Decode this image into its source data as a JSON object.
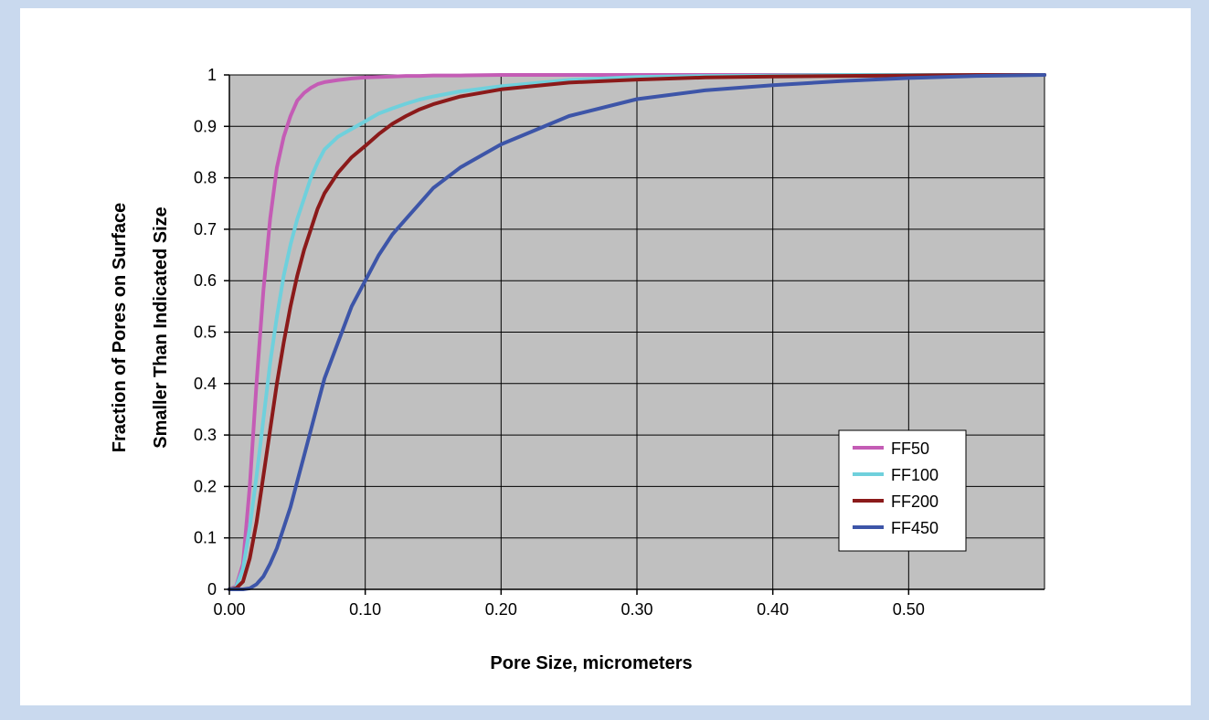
{
  "chart_data": {
    "type": "line",
    "title": "",
    "xlabel": "Pore Size, micrometers",
    "ylabel_line1": "Fraction of Pores on Surface",
    "ylabel_line2": "Smaller Than Indicated Size",
    "xlim": [
      0,
      0.6
    ],
    "ylim": [
      0,
      1
    ],
    "x_ticks": [
      0,
      0.1,
      0.2,
      0.3,
      0.4,
      0.5
    ],
    "x_tick_labels": [
      "0.00",
      "0.10",
      "0.20",
      "0.30",
      "0.40",
      "0.50"
    ],
    "y_ticks": [
      0,
      0.1,
      0.2,
      0.3,
      0.4,
      0.5,
      0.6,
      0.7,
      0.8,
      0.9,
      1
    ],
    "y_tick_labels": [
      "0",
      "0.1",
      "0.2",
      "0.3",
      "0.4",
      "0.5",
      "0.6",
      "0.7",
      "0.8",
      "0.9",
      "1"
    ],
    "grid": true,
    "plot_background": "#c0c0c0",
    "legend_position": "bottom-right",
    "x": [
      0,
      0.005,
      0.01,
      0.015,
      0.02,
      0.025,
      0.03,
      0.035,
      0.04,
      0.045,
      0.05,
      0.055,
      0.06,
      0.065,
      0.07,
      0.08,
      0.09,
      0.1,
      0.11,
      0.12,
      0.13,
      0.14,
      0.15,
      0.17,
      0.2,
      0.25,
      0.3,
      0.35,
      0.4,
      0.45,
      0.5,
      0.55,
      0.6
    ],
    "series": [
      {
        "name": "FF50",
        "color": "#c45cb5",
        "values": [
          0,
          0.006,
          0.05,
          0.2,
          0.4,
          0.58,
          0.72,
          0.82,
          0.88,
          0.92,
          0.95,
          0.965,
          0.975,
          0.982,
          0.986,
          0.99,
          0.993,
          0.995,
          0.996,
          0.997,
          0.998,
          0.998,
          0.999,
          0.999,
          1,
          1,
          1,
          1,
          1,
          1,
          1,
          1,
          1
        ]
      },
      {
        "name": "FF100",
        "color": "#6fd0dc",
        "values": [
          0,
          0.004,
          0.04,
          0.12,
          0.22,
          0.33,
          0.44,
          0.53,
          0.61,
          0.67,
          0.72,
          0.76,
          0.8,
          0.83,
          0.855,
          0.88,
          0.895,
          0.91,
          0.925,
          0.935,
          0.944,
          0.952,
          0.958,
          0.968,
          0.978,
          0.99,
          0.996,
          0.998,
          0.999,
          1,
          1,
          1,
          1
        ]
      },
      {
        "name": "FF200",
        "color": "#8b1a1a",
        "values": [
          0,
          0.002,
          0.015,
          0.06,
          0.13,
          0.22,
          0.31,
          0.4,
          0.48,
          0.55,
          0.61,
          0.66,
          0.7,
          0.74,
          0.77,
          0.81,
          0.84,
          0.862,
          0.885,
          0.905,
          0.92,
          0.933,
          0.943,
          0.958,
          0.972,
          0.985,
          0.991,
          0.995,
          0.997,
          0.998,
          0.999,
          1,
          1
        ]
      },
      {
        "name": "FF450",
        "color": "#3d55a8",
        "values": [
          0,
          0,
          0,
          0.002,
          0.01,
          0.025,
          0.05,
          0.08,
          0.12,
          0.16,
          0.21,
          0.26,
          0.31,
          0.36,
          0.41,
          0.48,
          0.55,
          0.6,
          0.65,
          0.69,
          0.72,
          0.75,
          0.78,
          0.82,
          0.865,
          0.92,
          0.953,
          0.97,
          0.98,
          0.988,
          0.994,
          0.998,
          1
        ]
      }
    ]
  }
}
